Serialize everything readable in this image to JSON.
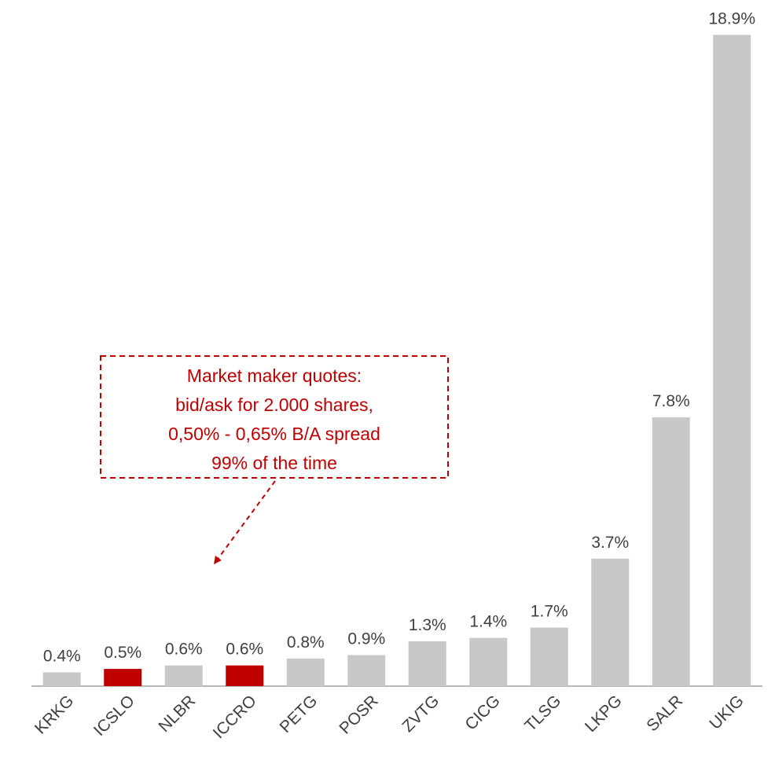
{
  "chart_data": {
    "type": "bar",
    "categories": [
      "KRKG",
      "ICSLO",
      "NLBR",
      "ICCRO",
      "PETG",
      "POSR",
      "ZVTG",
      "CICG",
      "TLSG",
      "LKPG",
      "SALR",
      "UKIG"
    ],
    "values": [
      0.4,
      0.5,
      0.6,
      0.6,
      0.8,
      0.9,
      1.3,
      1.4,
      1.7,
      3.7,
      7.8,
      18.9
    ],
    "value_labels": [
      "0.4%",
      "0.5%",
      "0.6%",
      "0.6%",
      "0.8%",
      "0.9%",
      "1.3%",
      "1.4%",
      "1.7%",
      "3.7%",
      "7.8%",
      "18.9%"
    ],
    "colors": [
      "#c8c8c8",
      "#c00000",
      "#c8c8c8",
      "#c00000",
      "#c8c8c8",
      "#c8c8c8",
      "#c8c8c8",
      "#c8c8c8",
      "#c8c8c8",
      "#c8c8c8",
      "#c8c8c8",
      "#c8c8c8"
    ],
    "ylim": [
      0,
      19
    ],
    "annotation": [
      "Market maker quotes:",
      "bid/ask for 2.000 shares,",
      "0,50% - 0,65% B/A spread",
      "99% of the time"
    ]
  }
}
